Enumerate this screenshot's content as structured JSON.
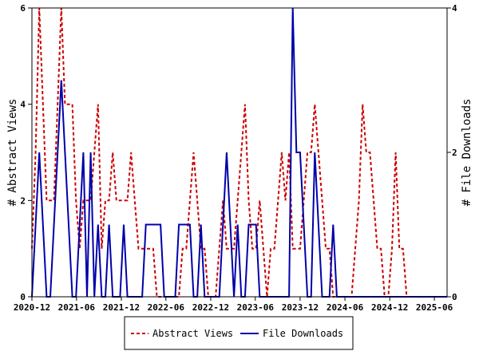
{
  "chart_data": {
    "type": "line",
    "ylabel_left": "# Abstract Views",
    "ylabel_right": "# File Downloads",
    "x_tick_labels": [
      "2020-12",
      "2021-06",
      "2021-12",
      "2022-06",
      "2022-12",
      "2023-06",
      "2023-12",
      "2024-06",
      "2024-12",
      "2025-06"
    ],
    "y_left_ticks": [
      "0",
      "2",
      "4",
      "6"
    ],
    "y_right_ticks": [
      "0",
      "2",
      "4"
    ],
    "ylim_left": [
      0,
      6
    ],
    "ylim_right": [
      0,
      4
    ],
    "grid": false,
    "legend_position": "bottom",
    "x": [
      "2020-12-01",
      "2020-12-16",
      "2020-12-31",
      "2021-01-15",
      "2021-01-30",
      "2021-02-14",
      "2021-03-01",
      "2021-03-16",
      "2021-03-31",
      "2021-04-15",
      "2021-04-30",
      "2021-05-15",
      "2021-05-30",
      "2021-06-14",
      "2021-06-29",
      "2021-07-14",
      "2021-07-29",
      "2021-08-13",
      "2021-08-28",
      "2021-09-12",
      "2021-09-27",
      "2021-10-12",
      "2021-10-27",
      "2021-11-11",
      "2021-11-26",
      "2021-12-11",
      "2021-12-26",
      "2022-01-10",
      "2022-01-25",
      "2022-02-09",
      "2022-02-24",
      "2022-03-11",
      "2022-03-26",
      "2022-04-10",
      "2022-04-25",
      "2022-05-10",
      "2022-05-25",
      "2022-06-09",
      "2022-06-24",
      "2022-07-09",
      "2022-07-24",
      "2022-08-08",
      "2022-08-23",
      "2022-09-07",
      "2022-09-22",
      "2022-10-07",
      "2022-10-22",
      "2022-11-06",
      "2022-11-21",
      "2022-12-06",
      "2022-12-21",
      "2023-01-05",
      "2023-01-20",
      "2023-02-04",
      "2023-02-19",
      "2023-03-06",
      "2023-03-21",
      "2023-04-05",
      "2023-04-20",
      "2023-05-05",
      "2023-05-20",
      "2023-06-04",
      "2023-06-19",
      "2023-07-04",
      "2023-07-19",
      "2023-08-03",
      "2023-08-18",
      "2023-09-02",
      "2023-09-17",
      "2023-10-02",
      "2023-10-17",
      "2023-11-01",
      "2023-11-16",
      "2023-12-01",
      "2023-12-16",
      "2023-12-31",
      "2024-01-15",
      "2024-01-30",
      "2024-02-14",
      "2024-02-29",
      "2024-03-15",
      "2024-03-30",
      "2024-04-14",
      "2024-04-29",
      "2024-05-14",
      "2024-05-29",
      "2024-06-13",
      "2024-06-28",
      "2024-07-13",
      "2024-07-28",
      "2024-08-12",
      "2024-08-27",
      "2024-09-11",
      "2024-09-26",
      "2024-10-11",
      "2024-10-26",
      "2024-11-10",
      "2024-11-25",
      "2024-12-10",
      "2024-12-25",
      "2025-01-09",
      "2025-01-24",
      "2025-02-08",
      "2025-02-23",
      "2025-03-10",
      "2025-03-25",
      "2025-04-09",
      "2025-04-24",
      "2025-05-09",
      "2025-05-24",
      "2025-06-08",
      "2025-06-23",
      "2025-07-08",
      "2025-07-23"
    ],
    "series": [
      {
        "name": "Abstract Views",
        "axis": "left",
        "color": "#cc0000",
        "dash": true,
        "values": [
          1,
          3,
          6,
          4,
          2,
          2,
          2,
          4,
          6,
          4,
          4,
          4,
          2,
          1,
          2,
          2,
          2,
          3,
          4,
          1,
          2,
          2,
          3,
          2,
          2,
          2,
          2,
          3,
          2,
          1,
          1,
          1,
          1,
          1,
          0,
          0,
          0,
          0,
          0,
          0,
          0,
          1,
          1,
          2,
          3,
          2,
          1,
          1,
          0,
          0,
          0,
          1,
          2,
          1,
          1,
          1,
          2,
          3,
          4,
          2,
          1,
          1,
          2,
          1,
          0,
          1,
          1,
          2,
          3,
          2,
          3,
          1,
          1,
          1,
          2,
          3,
          3,
          4,
          3,
          2,
          1,
          1,
          0,
          0,
          0,
          0,
          0,
          0,
          1,
          2,
          4,
          3,
          3,
          2,
          1,
          1,
          0,
          0,
          1,
          3,
          1,
          1,
          0,
          0,
          0,
          0,
          0,
          0,
          0,
          0,
          0,
          0,
          0,
          0
        ]
      },
      {
        "name": "File Downloads",
        "axis": "right",
        "color": "#0000aa",
        "dash": false,
        "values": [
          0,
          1,
          2,
          1,
          0,
          0,
          1,
          2,
          3,
          2,
          1,
          0,
          0,
          1,
          2,
          0,
          2,
          0,
          1,
          0,
          0,
          1,
          0,
          0,
          0,
          1,
          0,
          0,
          0,
          0,
          0,
          1,
          1,
          1,
          1,
          1,
          0,
          0,
          0,
          0,
          1,
          1,
          1,
          1,
          0,
          0,
          1,
          0,
          0,
          0,
          0,
          0,
          1,
          2,
          1,
          0,
          1,
          0,
          0,
          1,
          1,
          1,
          0,
          0,
          0,
          0,
          0,
          0,
          0,
          0,
          0,
          4,
          2,
          2,
          1,
          0,
          0,
          2,
          1,
          0,
          0,
          0,
          1,
          0,
          0,
          0,
          0,
          0,
          0,
          0,
          0,
          0,
          0,
          0,
          0,
          0,
          0,
          0,
          0,
          0,
          0,
          0,
          0,
          0,
          0,
          0,
          0,
          0,
          0,
          0,
          0,
          0,
          0,
          0
        ]
      }
    ]
  }
}
